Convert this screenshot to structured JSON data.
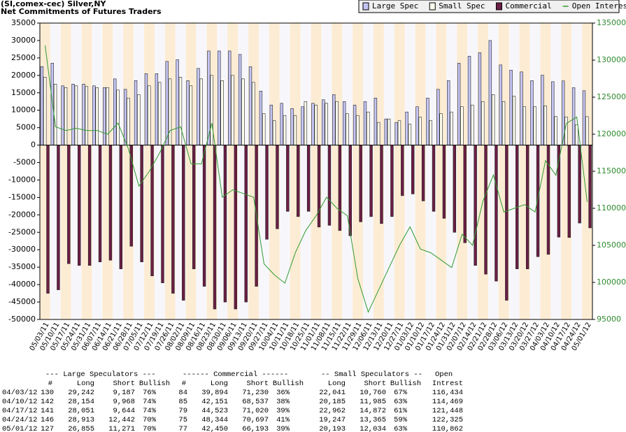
{
  "chart_data": {
    "type": "bar",
    "title": "(SI,comex-cec) Silver,NY",
    "subtitle": "Net Commitments of Futures Traders",
    "categories": [
      "05/03/11",
      "05/10/11",
      "05/17/11",
      "05/24/11",
      "05/31/11",
      "06/07/11",
      "06/14/11",
      "06/21/11",
      "06/28/11",
      "07/05/11",
      "07/12/11",
      "07/19/11",
      "07/26/11",
      "08/02/11",
      "08/09/11",
      "08/16/11",
      "08/23/11",
      "08/30/11",
      "09/06/11",
      "09/13/11",
      "09/20/11",
      "09/27/11",
      "10/04/11",
      "10/11/11",
      "10/18/11",
      "10/25/11",
      "11/01/11",
      "11/08/11",
      "11/15/11",
      "11/22/11",
      "11/29/11",
      "12/06/11",
      "12/13/11",
      "12/20/11",
      "12/27/11",
      "01/03/12",
      "01/10/12",
      "01/17/12",
      "01/24/12",
      "01/31/12",
      "02/07/12",
      "02/14/12",
      "02/21/12",
      "02/28/12",
      "03/06/12",
      "03/13/12",
      "03/20/12",
      "03/27/12",
      "04/03/12",
      "04/10/12",
      "04/17/12",
      "04/24/12",
      "05/01/12"
    ],
    "series": [
      {
        "name": "Large Spec",
        "color": "#c4c4f4",
        "values": [
          22500,
          23500,
          17000,
          17500,
          17500,
          17000,
          16500,
          19000,
          16000,
          18500,
          20500,
          20500,
          24000,
          24500,
          18500,
          22000,
          27000,
          27000,
          27000,
          26000,
          22500,
          15500,
          11500,
          12000,
          10500,
          11000,
          12000,
          13000,
          14500,
          12500,
          11500,
          12500,
          13500,
          7500,
          6500,
          9500,
          11000,
          13500,
          16000,
          18500,
          23500,
          25500,
          26500,
          30000,
          23000,
          21500,
          21000,
          18500,
          20055,
          18186,
          18407,
          16471,
          15584
        ]
      },
      {
        "name": "Small Spec",
        "color": "#fffff0",
        "values": [
          19500,
          17500,
          16500,
          17000,
          16800,
          16500,
          16500,
          15800,
          13500,
          14500,
          17000,
          18000,
          19000,
          19500,
          17000,
          19000,
          20000,
          18500,
          20000,
          19000,
          18000,
          9000,
          7000,
          8500,
          8500,
          12500,
          11500,
          12000,
          12500,
          9000,
          8500,
          9500,
          6500,
          7500,
          7000,
          6000,
          8000,
          7000,
          9000,
          9500,
          11000,
          11500,
          12500,
          14500,
          12500,
          14000,
          11000,
          11000,
          11281,
          8200,
          8090,
          5882,
          8159
        ]
      },
      {
        "name": "Commercial",
        "color": "#6b1e44",
        "values": [
          -42500,
          -41500,
          -34000,
          -34500,
          -34500,
          -33500,
          -33000,
          -35500,
          -29000,
          -33500,
          -37500,
          -39500,
          -42500,
          -44500,
          -35500,
          -40500,
          -47000,
          -45000,
          -47000,
          -45000,
          -40500,
          -27000,
          -24000,
          -19000,
          -20500,
          -19000,
          -23500,
          -23000,
          -24500,
          -26000,
          -22000,
          -20500,
          -22500,
          -20500,
          -14500,
          -14000,
          -16000,
          -19000,
          -21000,
          -25000,
          -28000,
          -34500,
          -37000,
          -39000,
          -44500,
          -35500,
          -35500,
          -32000,
          -31336,
          -26386,
          -26497,
          -22353,
          -23743
        ]
      },
      {
        "name": "Open Interest",
        "color": "#2f9a2f",
        "type": "line",
        "axis": "y2",
        "values": [
          132000,
          121000,
          120500,
          120800,
          120500,
          120500,
          120000,
          121500,
          118000,
          113000,
          115000,
          117500,
          120500,
          121000,
          116000,
          116000,
          121500,
          111500,
          112500,
          112000,
          111500,
          102500,
          101000,
          99900,
          104000,
          107000,
          109000,
          111500,
          110000,
          109000,
          100500,
          96000,
          99000,
          102000,
          105000,
          107500,
          104500,
          104000,
          103000,
          102000,
          106500,
          105000,
          111000,
          114500,
          109500,
          110000,
          110500,
          109500,
          116434,
          114469,
          121448,
          122325,
          110862
        ]
      }
    ],
    "ylim": [
      -50000,
      35000
    ],
    "yticks": [
      35000,
      30000,
      25000,
      20000,
      15000,
      10000,
      5000,
      0,
      -5000,
      -10000,
      -15000,
      -20000,
      -25000,
      -30000,
      -35000,
      -40000,
      -45000,
      -50000
    ],
    "y2lim": [
      95000,
      135000
    ],
    "y2ticks": [
      135000,
      130000,
      125000,
      120000,
      115000,
      110000,
      105000,
      100000,
      95000
    ],
    "stripe_colors": [
      "#fdecd4",
      "#f7f7fb"
    ],
    "legend": "top-right"
  },
  "table": {
    "group_headers": [
      "--- Large Speculators ---",
      "------ Commercial ------",
      "-- Small Speculators --",
      "Open"
    ],
    "columns": [
      "#",
      "Long",
      "Short",
      "Bullish",
      "#",
      "Long",
      "Short",
      "Bullish",
      "Long",
      "Short",
      "Bullish",
      "Intrest"
    ],
    "rows": [
      [
        "04/03/12",
        "130",
        "29,242",
        "9,187",
        "76%",
        "84",
        "39,894",
        "71,230",
        "36%",
        "22,041",
        "10,760",
        "67%",
        "116,434"
      ],
      [
        "04/10/12",
        "142",
        "28,154",
        "9,968",
        "74%",
        "85",
        "42,151",
        "68,537",
        "38%",
        "20,185",
        "11,985",
        "63%",
        "114,469"
      ],
      [
        "04/17/12",
        "141",
        "28,051",
        "9,644",
        "74%",
        "79",
        "44,523",
        "71,020",
        "39%",
        "22,962",
        "14,872",
        "61%",
        "121,448"
      ],
      [
        "04/24/12",
        "146",
        "28,913",
        "12,442",
        "70%",
        "75",
        "48,344",
        "70,697",
        "41%",
        "19,247",
        "13,365",
        "59%",
        "122,325"
      ],
      [
        "05/01/12",
        "127",
        "26,855",
        "11,271",
        "70%",
        "77",
        "42,450",
        "66,193",
        "39%",
        "20,193",
        "12,034",
        "63%",
        "110,862"
      ]
    ]
  }
}
